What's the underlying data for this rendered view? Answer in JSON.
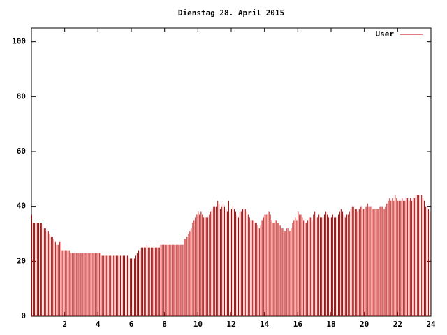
{
  "chart_data": {
    "type": "impulses",
    "title": "Dienstag 28. April 2015",
    "x": [
      0,
      0.08,
      0.17,
      0.25,
      0.33,
      0.42,
      0.5,
      0.58,
      0.67,
      0.75,
      0.83,
      0.92,
      1,
      1.08,
      1.17,
      1.25,
      1.33,
      1.42,
      1.5,
      1.58,
      1.67,
      1.75,
      1.83,
      1.92,
      2,
      2.08,
      2.17,
      2.25,
      2.33,
      2.42,
      2.5,
      2.58,
      2.67,
      2.75,
      2.83,
      2.92,
      3,
      3.08,
      3.17,
      3.25,
      3.33,
      3.42,
      3.5,
      3.58,
      3.67,
      3.75,
      3.83,
      3.92,
      4,
      4.08,
      4.17,
      4.25,
      4.33,
      4.42,
      4.5,
      4.58,
      4.67,
      4.75,
      4.83,
      4.92,
      5,
      5.08,
      5.17,
      5.25,
      5.33,
      5.42,
      5.5,
      5.58,
      5.67,
      5.75,
      5.83,
      5.92,
      6,
      6.08,
      6.17,
      6.25,
      6.33,
      6.42,
      6.5,
      6.58,
      6.67,
      6.75,
      6.83,
      6.92,
      7,
      7.08,
      7.17,
      7.25,
      7.33,
      7.42,
      7.5,
      7.58,
      7.67,
      7.75,
      7.83,
      7.92,
      8,
      8.08,
      8.17,
      8.25,
      8.33,
      8.42,
      8.5,
      8.58,
      8.67,
      8.75,
      8.83,
      8.92,
      9,
      9.08,
      9.17,
      9.25,
      9.33,
      9.42,
      9.5,
      9.58,
      9.67,
      9.75,
      9.83,
      9.92,
      10,
      10.08,
      10.17,
      10.25,
      10.33,
      10.42,
      10.5,
      10.58,
      10.67,
      10.75,
      10.83,
      10.92,
      11,
      11.08,
      11.17,
      11.25,
      11.33,
      11.42,
      11.5,
      11.58,
      11.67,
      11.75,
      11.83,
      11.92,
      12,
      12.08,
      12.17,
      12.25,
      12.33,
      12.42,
      12.5,
      12.58,
      12.67,
      12.75,
      12.83,
      12.92,
      13,
      13.08,
      13.17,
      13.25,
      13.33,
      13.42,
      13.5,
      13.58,
      13.67,
      13.75,
      13.83,
      13.92,
      14,
      14.08,
      14.17,
      14.25,
      14.33,
      14.42,
      14.5,
      14.58,
      14.67,
      14.75,
      14.83,
      14.92,
      15,
      15.08,
      15.17,
      15.25,
      15.33,
      15.42,
      15.5,
      15.58,
      15.67,
      15.75,
      15.83,
      15.92,
      16,
      16.08,
      16.17,
      16.25,
      16.33,
      16.42,
      16.5,
      16.58,
      16.67,
      16.75,
      16.83,
      16.92,
      17,
      17.08,
      17.17,
      17.25,
      17.33,
      17.42,
      17.5,
      17.58,
      17.67,
      17.75,
      17.83,
      17.92,
      18,
      18.08,
      18.17,
      18.25,
      18.33,
      18.42,
      18.5,
      18.58,
      18.67,
      18.75,
      18.83,
      18.92,
      19,
      19.08,
      19.17,
      19.25,
      19.33,
      19.42,
      19.5,
      19.58,
      19.67,
      19.75,
      19.83,
      19.92,
      20,
      20.08,
      20.17,
      20.25,
      20.33,
      20.42,
      20.5,
      20.58,
      20.67,
      20.75,
      20.83,
      20.92,
      21,
      21.08,
      21.17,
      21.25,
      21.33,
      21.42,
      21.5,
      21.58,
      21.67,
      21.75,
      21.83,
      21.92,
      22,
      22.08,
      22.17,
      22.25,
      22.33,
      22.42,
      22.5,
      22.58,
      22.67,
      22.75,
      22.83,
      22.92,
      23,
      23.08,
      23.17,
      23.25,
      23.33,
      23.42,
      23.5,
      23.58,
      23.67,
      23.75,
      23.83,
      23.92
    ],
    "series": [
      {
        "name": "User",
        "color": "#c00000",
        "values": [
          37,
          34,
          34,
          34,
          34,
          34,
          34,
          34,
          33,
          32,
          32,
          31,
          31,
          30,
          29,
          29,
          28,
          27,
          26,
          26,
          27,
          27,
          24,
          24,
          24,
          24,
          24,
          24,
          23,
          23,
          23,
          23,
          23,
          23,
          23,
          23,
          23,
          23,
          23,
          23,
          23,
          23,
          23,
          23,
          23,
          23,
          23,
          23,
          23,
          23,
          22,
          22,
          22,
          22,
          22,
          22,
          22,
          22,
          22,
          22,
          22,
          22,
          22,
          22,
          22,
          22,
          22,
          22,
          22,
          22,
          21,
          21,
          21,
          21,
          21,
          22,
          23,
          24,
          24,
          25,
          25,
          25,
          25,
          26,
          25,
          25,
          25,
          25,
          25,
          25,
          25,
          25,
          25,
          26,
          26,
          26,
          26,
          26,
          26,
          26,
          26,
          26,
          26,
          26,
          26,
          26,
          26,
          26,
          26,
          26,
          28,
          28,
          29,
          30,
          31,
          32,
          34,
          35,
          36,
          37,
          38,
          37,
          38,
          37,
          36,
          36,
          36,
          36,
          37,
          38,
          39,
          40,
          40,
          40,
          42,
          41,
          39,
          40,
          41,
          40,
          39,
          38,
          42,
          38,
          39,
          40,
          39,
          38,
          37,
          36,
          38,
          38,
          39,
          39,
          39,
          38,
          37,
          36,
          35,
          35,
          35,
          34,
          34,
          33,
          32,
          33,
          35,
          36,
          37,
          37,
          37,
          38,
          37,
          35,
          34,
          34,
          35,
          34,
          34,
          33,
          32,
          32,
          31,
          31,
          32,
          32,
          31,
          32,
          34,
          35,
          36,
          35,
          38,
          37,
          37,
          36,
          35,
          34,
          34,
          35,
          36,
          36,
          35,
          37,
          38,
          36,
          36,
          37,
          36,
          36,
          36,
          37,
          38,
          37,
          36,
          36,
          36,
          37,
          36,
          36,
          36,
          37,
          38,
          39,
          38,
          37,
          36,
          37,
          37,
          38,
          39,
          40,
          40,
          39,
          39,
          38,
          39,
          40,
          40,
          39,
          39,
          40,
          41,
          40,
          40,
          40,
          39,
          39,
          39,
          39,
          39,
          40,
          40,
          40,
          39,
          40,
          41,
          42,
          43,
          42,
          43,
          42,
          44,
          43,
          42,
          42,
          42,
          43,
          42,
          42,
          43,
          43,
          42,
          43,
          42,
          43,
          43,
          44,
          44,
          44,
          44,
          44,
          43,
          42,
          40,
          40,
          39,
          38
        ]
      }
    ],
    "xlim": [
      0,
      24
    ],
    "xticks": [
      2,
      4,
      6,
      8,
      10,
      12,
      14,
      16,
      18,
      20,
      22,
      24
    ],
    "ylim": [
      0,
      105
    ],
    "yticks": [
      0,
      20,
      40,
      60,
      80,
      100
    ],
    "legend": "top-right"
  }
}
